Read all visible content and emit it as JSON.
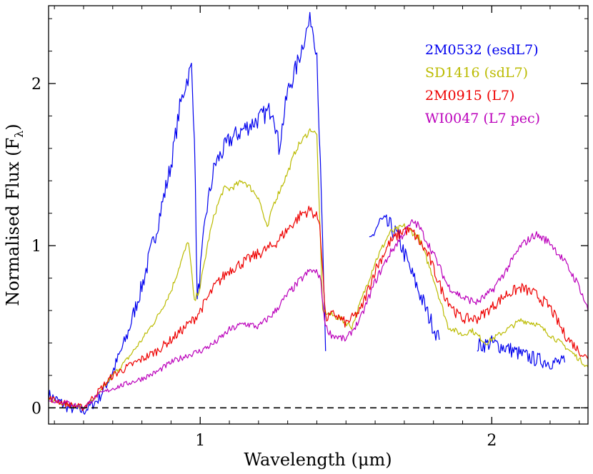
{
  "chart_data": {
    "type": "line",
    "xlabel": "Wavelength (μm)",
    "ylabel": "Normalised Flux  (F",
    "ylabel_sub": "λ",
    "ylabel_close": ")",
    "xlim": [
      0.48,
      2.33
    ],
    "ylim": [
      -0.1,
      2.48
    ],
    "xticks": [
      {
        "value": 1,
        "label": "1"
      },
      {
        "value": 2,
        "label": "2"
      }
    ],
    "yticks": [
      {
        "value": 0,
        "label": "0"
      },
      {
        "value": 1,
        "label": "1"
      },
      {
        "value": 2,
        "label": "2"
      }
    ],
    "zero_line": {
      "y": 0,
      "style": "dashed",
      "color": "#000000"
    },
    "legend_position": "top-right",
    "series": [
      {
        "name": "2M0532 (esdL7)",
        "color": "#0000ee",
        "noise": 0.06,
        "segments": [
          {
            "x": [
              0.48,
              0.55,
              0.6,
              0.65,
              0.7,
              0.75,
              0.8,
              0.85,
              0.9,
              0.93,
              0.95,
              0.97,
              0.98,
              0.99,
              1.02,
              1.05,
              1.1,
              1.15,
              1.2,
              1.25,
              1.27,
              1.3,
              1.33,
              1.36,
              1.38,
              1.4,
              1.42,
              1.43
            ],
            "y": [
              0.08,
              0.0,
              -0.02,
              0.05,
              0.22,
              0.45,
              0.75,
              1.1,
              1.5,
              1.85,
              2.0,
              2.1,
              1.7,
              0.65,
              1.2,
              1.5,
              1.65,
              1.72,
              1.78,
              1.85,
              1.6,
              1.95,
              2.1,
              2.3,
              2.4,
              2.2,
              1.0,
              0.35
            ]
          },
          {
            "x": [
              1.58,
              1.6,
              1.62,
              1.65,
              1.68,
              1.7,
              1.72,
              1.75,
              1.78,
              1.8,
              1.82
            ],
            "y": [
              1.0,
              1.1,
              1.15,
              1.12,
              1.05,
              0.95,
              0.85,
              0.72,
              0.58,
              0.5,
              0.42
            ]
          },
          {
            "x": [
              1.95,
              2.0,
              2.05,
              2.1,
              2.15,
              2.2,
              2.25
            ],
            "y": [
              0.38,
              0.4,
              0.37,
              0.33,
              0.3,
              0.28,
              0.28
            ]
          }
        ]
      },
      {
        "name": "SD1416 (sdL7)",
        "color": "#bbbb00",
        "noise": 0.02,
        "segments": [
          {
            "x": [
              0.48,
              0.55,
              0.6,
              0.65,
              0.7,
              0.75,
              0.8,
              0.85,
              0.9,
              0.93,
              0.96,
              0.98,
              1.0,
              1.03,
              1.05,
              1.08,
              1.1,
              1.15,
              1.2,
              1.23,
              1.25,
              1.3,
              1.33,
              1.35,
              1.38,
              1.4,
              1.42,
              1.44,
              1.48,
              1.52,
              1.55,
              1.6,
              1.65,
              1.7,
              1.75,
              1.8,
              1.85,
              1.9,
              1.93,
              1.98,
              2.05,
              2.1,
              2.15,
              2.2,
              2.25,
              2.3,
              2.33
            ],
            "y": [
              0.05,
              0.02,
              0.0,
              0.08,
              0.2,
              0.3,
              0.42,
              0.55,
              0.72,
              0.88,
              1.03,
              0.65,
              0.75,
              1.05,
              1.2,
              1.35,
              1.35,
              1.4,
              1.3,
              1.1,
              1.25,
              1.45,
              1.6,
              1.65,
              1.72,
              1.68,
              0.6,
              0.58,
              0.55,
              0.5,
              0.65,
              0.9,
              1.08,
              1.12,
              1.05,
              0.8,
              0.5,
              0.45,
              0.48,
              0.4,
              0.48,
              0.54,
              0.52,
              0.45,
              0.38,
              0.3,
              0.25
            ]
          }
        ]
      },
      {
        "name": "2M0915 (L7)",
        "color": "#ee0000",
        "noise": 0.035,
        "segments": [
          {
            "x": [
              0.48,
              0.55,
              0.6,
              0.65,
              0.7,
              0.75,
              0.8,
              0.85,
              0.9,
              0.95,
              0.98,
              1.0,
              1.05,
              1.1,
              1.15,
              1.2,
              1.25,
              1.3,
              1.35,
              1.38,
              1.41,
              1.43,
              1.46,
              1.5,
              1.55,
              1.6,
              1.65,
              1.7,
              1.73,
              1.78,
              1.83,
              1.88,
              1.9,
              1.95,
              2.0,
              2.05,
              2.1,
              2.15,
              2.2,
              2.25,
              2.3,
              2.33
            ],
            "y": [
              0.06,
              0.02,
              0.0,
              0.1,
              0.2,
              0.25,
              0.3,
              0.35,
              0.42,
              0.5,
              0.55,
              0.6,
              0.75,
              0.85,
              0.9,
              0.95,
              1.0,
              1.1,
              1.2,
              1.22,
              1.15,
              0.55,
              0.58,
              0.52,
              0.6,
              0.85,
              1.02,
              1.1,
              1.08,
              0.95,
              0.72,
              0.58,
              0.55,
              0.55,
              0.62,
              0.7,
              0.74,
              0.7,
              0.62,
              0.45,
              0.35,
              0.3
            ]
          }
        ]
      },
      {
        "name": "WI0047 (L7 pec)",
        "color": "#bb00bb",
        "noise": 0.025,
        "segments": [
          {
            "x": [
              0.48,
              0.55,
              0.6,
              0.65,
              0.7,
              0.75,
              0.8,
              0.85,
              0.9,
              0.95,
              1.0,
              1.05,
              1.1,
              1.15,
              1.2,
              1.25,
              1.3,
              1.35,
              1.38,
              1.41,
              1.43,
              1.45,
              1.5,
              1.55,
              1.6,
              1.65,
              1.7,
              1.73,
              1.75,
              1.8,
              1.85,
              1.9,
              1.95,
              2.0,
              2.05,
              2.1,
              2.15,
              2.2,
              2.25,
              2.3,
              2.33
            ],
            "y": [
              0.05,
              0.03,
              0.0,
              0.08,
              0.12,
              0.15,
              0.18,
              0.22,
              0.28,
              0.32,
              0.35,
              0.4,
              0.48,
              0.52,
              0.5,
              0.58,
              0.7,
              0.8,
              0.85,
              0.82,
              0.5,
              0.45,
              0.42,
              0.55,
              0.78,
              0.95,
              1.08,
              1.15,
              1.12,
              0.95,
              0.75,
              0.68,
              0.65,
              0.72,
              0.85,
              1.0,
              1.07,
              1.02,
              0.9,
              0.75,
              0.6
            ]
          }
        ]
      }
    ]
  }
}
